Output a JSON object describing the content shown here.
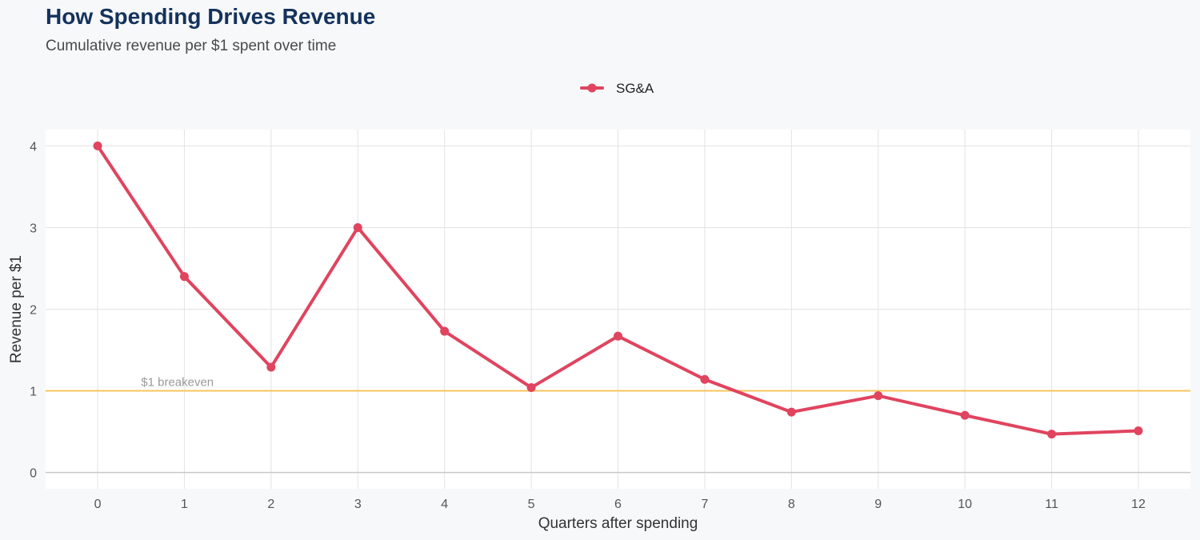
{
  "header": {
    "title": "How Spending Drives Revenue",
    "subtitle": "Cumulative revenue per $1 spent over time"
  },
  "colors": {
    "series": "#e0445f",
    "breakeven": "#f7c45e",
    "grid": "#e3e3e3",
    "baseline": "#c8c8c8"
  },
  "chart_data": {
    "type": "line",
    "title": "How Spending Drives Revenue",
    "subtitle": "Cumulative revenue per $1 spent over time",
    "xlabel": "Quarters after spending",
    "ylabel": "Revenue per $1",
    "x": [
      0,
      1,
      2,
      3,
      4,
      5,
      6,
      7,
      8,
      9,
      10,
      11,
      12
    ],
    "series": [
      {
        "name": "SG&A",
        "values": [
          4.0,
          2.4,
          1.29,
          3.0,
          1.73,
          1.04,
          1.67,
          1.14,
          0.74,
          0.94,
          0.7,
          0.47,
          0.51
        ]
      }
    ],
    "xticks": [
      "0",
      "1",
      "2",
      "3",
      "4",
      "5",
      "6",
      "7",
      "8",
      "9",
      "10",
      "11",
      "12"
    ],
    "yticks": [
      "0",
      "1",
      "2",
      "3",
      "4"
    ],
    "xlim": [
      -0.6,
      12.6
    ],
    "ylim": [
      -0.2,
      4.2
    ],
    "grid": true,
    "legend_position": "top-center",
    "reference_line": {
      "y": 1,
      "label": "$1 breakeven"
    }
  }
}
